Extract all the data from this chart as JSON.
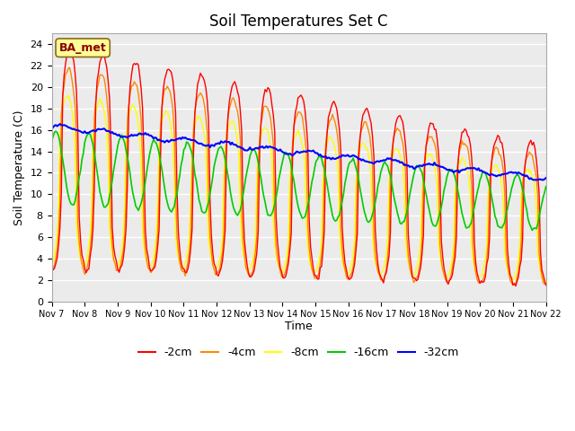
{
  "title": "Soil Temperatures Set C",
  "xlabel": "Time",
  "ylabel": "Soil Temperature (C)",
  "annotation": "BA_met",
  "ylim": [
    0,
    25
  ],
  "yticks": [
    0,
    2,
    4,
    6,
    8,
    10,
    12,
    14,
    16,
    18,
    20,
    22,
    24
  ],
  "xtick_labels": [
    "Nov 7",
    "Nov 8",
    "Nov 9",
    "Nov 10",
    "Nov 11",
    "Nov 12",
    "Nov 13",
    "Nov 14",
    "Nov 15",
    "Nov 16",
    "Nov 17",
    "Nov 18",
    "Nov 19",
    "Nov 20",
    "Nov 21",
    "Nov 22"
  ],
  "legend_labels": [
    "-2cm",
    "-4cm",
    "-8cm",
    "-16cm",
    "-32cm"
  ],
  "legend_colors": [
    "#ff0000",
    "#ff8800",
    "#ffff00",
    "#00cc00",
    "#0000ff"
  ],
  "background_color": "#ebebeb",
  "title_fontsize": 12
}
